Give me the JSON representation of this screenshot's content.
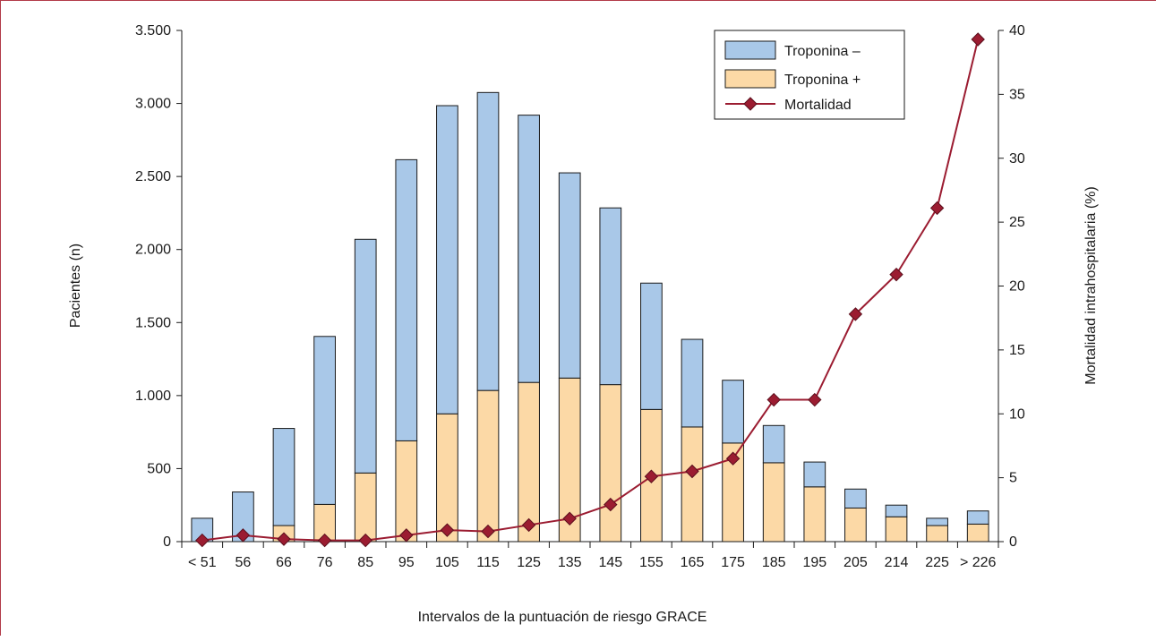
{
  "chart_data": {
    "type": "bar",
    "stacked": true,
    "xlabel": "Intervalos de la puntuación de riesgo GRACE",
    "ylabel": "Pacientes (n)",
    "y2label": "Mortalidad intrahospitalaria (%)",
    "ylim": [
      0,
      3500
    ],
    "y2lim": [
      0,
      40
    ],
    "yticks": [
      0,
      500,
      1000,
      1500,
      2000,
      2500,
      3000,
      3500
    ],
    "ytick_labels": [
      "0",
      "500",
      "1.000",
      "1.500",
      "2.000",
      "2.500",
      "3.000",
      "3.500"
    ],
    "y2ticks": [
      0,
      5,
      10,
      15,
      20,
      25,
      30,
      35,
      40
    ],
    "y2tick_labels": [
      "0",
      "5",
      "10",
      "15",
      "20",
      "25",
      "30",
      "35",
      "40"
    ],
    "categories": [
      "< 51",
      "56",
      "66",
      "76",
      "85",
      "95",
      "105",
      "115",
      "125",
      "135",
      "145",
      "155",
      "165",
      "175",
      "185",
      "195",
      "205",
      "214",
      "225",
      "> 226"
    ],
    "series": [
      {
        "name": "Troponina +",
        "kind": "bar",
        "color": "#fcd9a6",
        "values": [
          0,
          0,
          110,
          255,
          470,
          690,
          875,
          1035,
          1090,
          1120,
          1075,
          905,
          785,
          675,
          540,
          375,
          230,
          170,
          110,
          120
        ]
      },
      {
        "name": "Troponina –",
        "kind": "bar",
        "color": "#a9c8e8",
        "values": [
          160,
          340,
          665,
          1150,
          1600,
          1925,
          2110,
          2040,
          1830,
          1405,
          1210,
          865,
          600,
          430,
          255,
          170,
          130,
          80,
          50,
          90
        ]
      },
      {
        "name": "Mortalidad",
        "kind": "line",
        "axis": "y2",
        "color": "#9b1c31",
        "marker": "diamond",
        "values": [
          0.1,
          0.5,
          0.2,
          0.1,
          0.1,
          0.5,
          0.9,
          0.8,
          1.3,
          1.8,
          2.9,
          5.1,
          5.5,
          6.5,
          11.1,
          11.1,
          17.8,
          20.9,
          26.1,
          39.3
        ]
      }
    ],
    "legend": {
      "position": "top-right",
      "entries": [
        "Troponina –",
        "Troponina +",
        "Mortalidad"
      ]
    },
    "grid": false
  }
}
